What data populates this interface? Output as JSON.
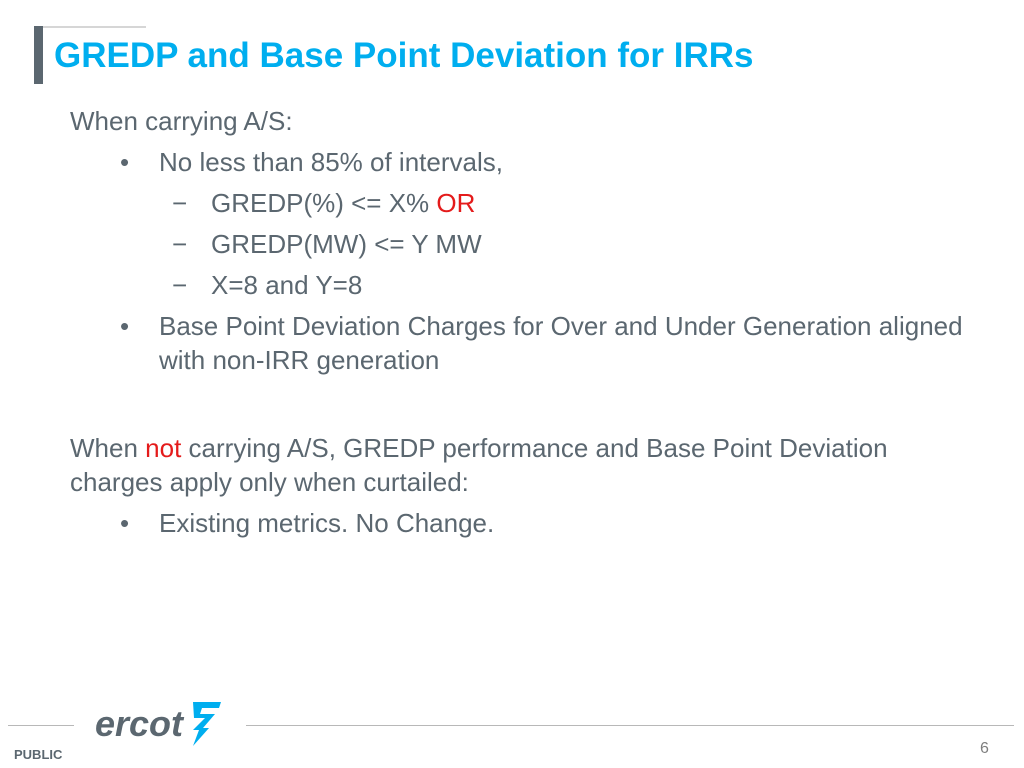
{
  "title": "GREDP and Base Point Deviation for IRRs",
  "section1": {
    "intro": "When carrying A/S:",
    "bullet1": "No less than 85% of intervals,",
    "sub1_prefix": "GREDP(%) <= X%",
    "sub1_emph": "OR",
    "sub2": "GREDP(MW) <= Y MW",
    "sub3": "X=8 and Y=8",
    "bullet2": "Base Point Deviation Charges for Over and Under Generation aligned with non-IRR generation"
  },
  "section2": {
    "intro_start": "When",
    "intro_emph": "not",
    "intro_rest": "carrying A/S, GREDP performance and Base Point Deviation charges apply only when curtailed:",
    "bullet1": "Existing metrics. No Change."
  },
  "markers": {
    "bullet": "•",
    "dash": "−"
  },
  "footer": {
    "logo_text": "ercot",
    "classification": "PUBLIC",
    "page_number": "6"
  },
  "colors": {
    "title": "#00aeef",
    "body": "#5b6770",
    "emphasis": "#e41b1b",
    "logo": "#5b6770",
    "logo_mark": "#00aeef"
  },
  "icons": {
    "logo_mark": "ercot-lightning-icon"
  }
}
